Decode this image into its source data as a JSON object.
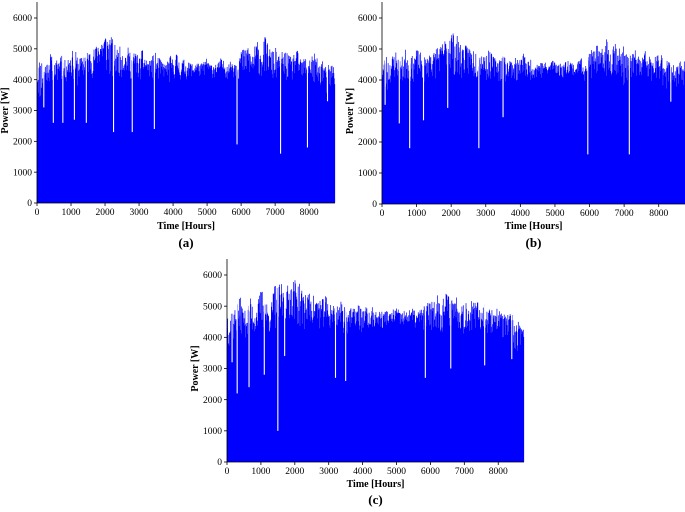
{
  "chart_data": [
    {
      "panel_label": "(a)",
      "type": "bar",
      "xlabel": "Time [Hours]",
      "ylabel": "Power [W]",
      "xlim": [
        0,
        8760
      ],
      "ylim": [
        0,
        6000
      ],
      "xticks": [
        0,
        1000,
        2000,
        3000,
        4000,
        5000,
        6000,
        7000,
        8000
      ],
      "yticks": [
        0,
        1000,
        2000,
        3000,
        4000,
        5000,
        6000
      ],
      "color": "#0000ff",
      "grid": false,
      "x": [
        0,
        100,
        200,
        300,
        400,
        500,
        600,
        700,
        800,
        900,
        1000,
        1100,
        1200,
        1300,
        1400,
        1500,
        1600,
        1700,
        1800,
        1900,
        2000,
        2100,
        2200,
        2300,
        2400,
        2500,
        2600,
        2700,
        2800,
        2900,
        3000,
        3100,
        3200,
        3300,
        3400,
        3500,
        3600,
        3700,
        3800,
        3900,
        4000,
        4100,
        4200,
        4300,
        4400,
        4500,
        4600,
        4700,
        4800,
        4900,
        5000,
        5100,
        5200,
        5300,
        5400,
        5500,
        5600,
        5700,
        5800,
        5900,
        6000,
        6100,
        6200,
        6300,
        6400,
        6500,
        6600,
        6700,
        6800,
        6900,
        7000,
        7100,
        7200,
        7300,
        7400,
        7500,
        7600,
        7700,
        7800,
        7900,
        8000,
        8100,
        8200,
        8300,
        8400,
        8500,
        8600,
        8700
      ],
      "upper": [
        4500,
        4800,
        4700,
        4600,
        4900,
        4500,
        4700,
        5100,
        4600,
        4800,
        4900,
        5000,
        4800,
        4700,
        5000,
        4900,
        5100,
        5000,
        5300,
        5400,
        5600,
        5500,
        5400,
        5100,
        5000,
        5200,
        4900,
        5100,
        4800,
        5000,
        4700,
        5000,
        4800,
        4600,
        4800,
        4900,
        4700,
        4600,
        4500,
        4800,
        4700,
        4900,
        4600,
        4700,
        4500,
        4600,
        4500,
        4600,
        4500,
        4600,
        4700,
        4500,
        4600,
        4500,
        4700,
        4600,
        4500,
        4600,
        4700,
        4800,
        5000,
        5000,
        5200,
        4900,
        5100,
        5300,
        5000,
        5400,
        5200,
        4900,
        5100,
        4800,
        4900,
        5000,
        4800,
        4700,
        5000,
        4900,
        4600,
        4800,
        4700,
        4900,
        4800,
        4500,
        4700,
        4400,
        4600,
        4500
      ],
      "lower": [
        3600,
        3100,
        3500,
        3900,
        3800,
        4000,
        3700,
        3900,
        3800,
        3900,
        4000,
        3900,
        3700,
        4100,
        3900,
        4100,
        4000,
        4200,
        4300,
        4400,
        4100,
        4000,
        3800,
        4000,
        4100,
        4000,
        4100,
        3900,
        4000,
        4100,
        3900,
        4000,
        4000,
        4100,
        3900,
        3800,
        3900,
        4000,
        4100,
        3800,
        3900,
        4100,
        3900,
        4000,
        4000,
        4100,
        4000,
        4200,
        4000,
        4100,
        4200,
        4100,
        4000,
        4100,
        4200,
        4100,
        4000,
        4200,
        4000,
        3900,
        4000,
        3900,
        4100,
        3800,
        4000,
        4100,
        4000,
        4100,
        4100,
        3900,
        3800,
        3900,
        4000,
        3700,
        4000,
        3900,
        4100,
        3800,
        3900,
        3800,
        4000,
        3700,
        3600,
        3700,
        3900,
        3300,
        3500,
        3700
      ],
      "dips": [
        [
          200,
          3100
        ],
        [
          480,
          2600
        ],
        [
          760,
          2600
        ],
        [
          1100,
          2700
        ],
        [
          1450,
          2600
        ],
        [
          2250,
          2300
        ],
        [
          2800,
          2300
        ],
        [
          3450,
          2400
        ],
        [
          5880,
          1900
        ],
        [
          7160,
          1600
        ],
        [
          7950,
          1800
        ],
        [
          8540,
          3300
        ]
      ]
    },
    {
      "panel_label": "(b)",
      "type": "bar",
      "xlabel": "Time [Hours]",
      "ylabel": "Power [W]",
      "xlim": [
        0,
        8760
      ],
      "ylim": [
        0,
        6000
      ],
      "xticks": [
        0,
        1000,
        2000,
        3000,
        4000,
        5000,
        6000,
        7000,
        8000
      ],
      "yticks": [
        0,
        1000,
        2000,
        3000,
        4000,
        5000,
        6000
      ],
      "color": "#0000ff",
      "grid": false,
      "x": [
        0,
        100,
        200,
        300,
        400,
        500,
        600,
        700,
        800,
        900,
        1000,
        1100,
        1200,
        1300,
        1400,
        1500,
        1600,
        1700,
        1800,
        1900,
        2000,
        2100,
        2200,
        2300,
        2400,
        2500,
        2600,
        2700,
        2800,
        2900,
        3000,
        3100,
        3200,
        3300,
        3400,
        3500,
        3600,
        3700,
        3800,
        3900,
        4000,
        4100,
        4200,
        4300,
        4400,
        4500,
        4600,
        4700,
        4800,
        4900,
        5000,
        5100,
        5200,
        5300,
        5400,
        5500,
        5600,
        5700,
        5800,
        5900,
        6000,
        6100,
        6200,
        6300,
        6400,
        6500,
        6600,
        6700,
        6800,
        6900,
        7000,
        7100,
        7200,
        7300,
        7400,
        7500,
        7600,
        7700,
        7800,
        7900,
        8000,
        8100,
        8200,
        8300,
        8400,
        8500,
        8600,
        8700
      ],
      "upper": [
        4600,
        4900,
        4700,
        4800,
        5000,
        4600,
        4800,
        5100,
        4700,
        4800,
        5000,
        4900,
        4800,
        4700,
        5100,
        4900,
        5200,
        5100,
        5300,
        5400,
        5700,
        5500,
        5400,
        5200,
        5100,
        5200,
        5000,
        5100,
        4900,
        5000,
        4800,
        5000,
        4800,
        4700,
        4800,
        4900,
        4700,
        4700,
        4600,
        4800,
        4700,
        4900,
        4600,
        4700,
        4500,
        4600,
        4600,
        4600,
        4500,
        4700,
        4700,
        4500,
        4600,
        4600,
        4700,
        4600,
        4500,
        4700,
        4700,
        4800,
        5000,
        5000,
        5200,
        4900,
        5100,
        5400,
        5000,
        5400,
        5200,
        5000,
        5100,
        4800,
        4900,
        5000,
        4900,
        4700,
        5000,
        4900,
        4600,
        4800,
        4800,
        4900,
        4800,
        4600,
        4700,
        4500,
        4600,
        4600
      ],
      "lower": [
        3800,
        3200,
        3600,
        4000,
        3900,
        4000,
        3700,
        3900,
        3900,
        3900,
        4100,
        3900,
        3800,
        4100,
        3900,
        4100,
        4000,
        4200,
        4300,
        4400,
        4200,
        4000,
        3900,
        4000,
        4100,
        4000,
        4100,
        3900,
        4000,
        4100,
        3900,
        4000,
        4000,
        4100,
        3900,
        3800,
        3900,
        4000,
        4100,
        3800,
        3900,
        4100,
        3900,
        4000,
        4000,
        4100,
        4000,
        4200,
        4000,
        4100,
        4200,
        4100,
        4000,
        4100,
        4200,
        4100,
        4000,
        4200,
        4000,
        3900,
        4000,
        3900,
        4100,
        3800,
        4000,
        4100,
        4000,
        4100,
        4100,
        3900,
        3800,
        3900,
        4000,
        3800,
        4000,
        3900,
        4100,
        3800,
        3900,
        3800,
        4000,
        3800,
        3700,
        3800,
        3900,
        3400,
        3600,
        3800
      ],
      "dips": [
        [
          90,
          3200
        ],
        [
          500,
          2600
        ],
        [
          800,
          1800
        ],
        [
          1200,
          2700
        ],
        [
          1900,
          3100
        ],
        [
          2800,
          1800
        ],
        [
          3500,
          2800
        ],
        [
          5950,
          1600
        ],
        [
          7150,
          1600
        ],
        [
          8350,
          3300
        ]
      ]
    },
    {
      "panel_label": "(c)",
      "type": "bar",
      "xlabel": "Time [Hours]",
      "ylabel": "Power [W]",
      "xlim": [
        0,
        8760
      ],
      "ylim": [
        0,
        6000
      ],
      "xticks": [
        0,
        1000,
        2000,
        3000,
        4000,
        5000,
        6000,
        7000,
        8000
      ],
      "yticks": [
        0,
        1000,
        2000,
        3000,
        4000,
        5000,
        6000
      ],
      "color": "#0000ff",
      "grid": false,
      "x": [
        0,
        100,
        200,
        300,
        400,
        500,
        600,
        700,
        800,
        900,
        1000,
        1100,
        1200,
        1300,
        1400,
        1500,
        1600,
        1700,
        1800,
        1900,
        2000,
        2100,
        2200,
        2300,
        2400,
        2500,
        2600,
        2700,
        2800,
        2900,
        3000,
        3100,
        3200,
        3300,
        3400,
        3500,
        3600,
        3700,
        3800,
        3900,
        4000,
        4100,
        4200,
        4300,
        4400,
        4500,
        4600,
        4700,
        4800,
        4900,
        5000,
        5100,
        5200,
        5300,
        5400,
        5500,
        5600,
        5700,
        5800,
        5900,
        6000,
        6100,
        6200,
        6300,
        6400,
        6500,
        6600,
        6700,
        6800,
        6900,
        7000,
        7100,
        7200,
        7300,
        7400,
        7500,
        7600,
        7700,
        7800,
        7900,
        8000,
        8100,
        8200,
        8300,
        8400,
        8500,
        8600,
        8700
      ],
      "upper": [
        4800,
        5200,
        4900,
        5100,
        5300,
        4800,
        5000,
        5300,
        4900,
        5100,
        5600,
        5400,
        5100,
        5000,
        5800,
        5600,
        5800,
        5500,
        5700,
        5800,
        5900,
        5800,
        5600,
        5500,
        5400,
        5500,
        5300,
        5400,
        5200,
        5400,
        5100,
        5200,
        5000,
        5100,
        5200,
        5100,
        5000,
        4900,
        5000,
        5100,
        4900,
        5000,
        4800,
        5000,
        4800,
        4900,
        4800,
        4900,
        4800,
        4900,
        5000,
        4800,
        4900,
        4800,
        5000,
        4900,
        4800,
        4900,
        5000,
        5100,
        5300,
        5200,
        5400,
        5200,
        5400,
        5500,
        5300,
        5400,
        5300,
        5200,
        5300,
        5100,
        5200,
        5100,
        5200,
        5000,
        5100,
        5000,
        4900,
        5000,
        4900,
        4900,
        4800,
        4700,
        4800,
        4500,
        4500,
        4300
      ],
      "lower": [
        4000,
        3300,
        3800,
        4100,
        4000,
        4200,
        3800,
        4000,
        4000,
        4100,
        4200,
        4100,
        3900,
        4200,
        4100,
        4200,
        4200,
        4400,
        4500,
        4600,
        4400,
        4300,
        4100,
        4200,
        4300,
        4200,
        4300,
        4100,
        4200,
        4300,
        4100,
        4200,
        4200,
        4300,
        4100,
        4000,
        4100,
        4200,
        4300,
        4000,
        4100,
        4300,
        4100,
        4200,
        4200,
        4300,
        4200,
        4400,
        4200,
        4300,
        4400,
        4300,
        4200,
        4300,
        4400,
        4300,
        4200,
        4400,
        4200,
        4100,
        4200,
        4100,
        4300,
        4000,
        4200,
        4300,
        4200,
        4300,
        4300,
        4100,
        4000,
        4100,
        4200,
        3900,
        4200,
        4100,
        4300,
        4000,
        4100,
        4000,
        4200,
        3900,
        3800,
        3800,
        3900,
        3300,
        3500,
        3600
      ],
      "dips": [
        [
          150,
          3200
        ],
        [
          300,
          2200
        ],
        [
          650,
          2400
        ],
        [
          1100,
          2800
        ],
        [
          1500,
          1000
        ],
        [
          1700,
          3400
        ],
        [
          3200,
          2700
        ],
        [
          3500,
          2600
        ],
        [
          5850,
          2700
        ],
        [
          6600,
          3000
        ],
        [
          7600,
          3100
        ],
        [
          8400,
          3300
        ]
      ]
    }
  ]
}
